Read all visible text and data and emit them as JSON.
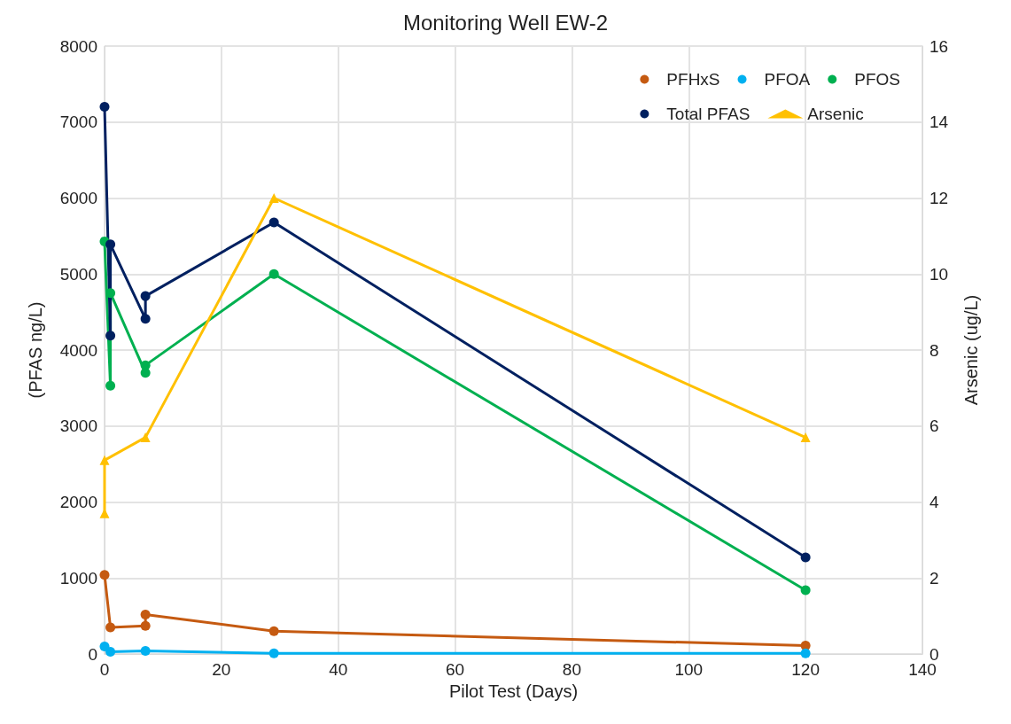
{
  "chart_data": {
    "type": "line",
    "title": "Monitoring Well EW-2",
    "xlabel": "Pilot Test (Days)",
    "ylabel": "(PFAS ng/L)",
    "y2label": "Arsenic (ug/L)",
    "series": [
      {
        "name": "PFHxS",
        "color": "#c55a11",
        "marker": "circle",
        "x": [
          0,
          1,
          7,
          7,
          29,
          120
        ],
        "values": [
          1040,
          350,
          370,
          520,
          300,
          110
        ]
      },
      {
        "name": "PFOA",
        "color": "#00b0f0",
        "marker": "circle",
        "x": [
          0,
          1,
          7,
          29,
          120
        ],
        "values": [
          100,
          30,
          40,
          10,
          10
        ]
      },
      {
        "name": "PFOS",
        "color": "#00b050",
        "marker": "circle",
        "x": [
          0,
          1,
          1,
          7,
          7,
          29,
          120
        ],
        "values": [
          5430,
          3530,
          4750,
          3700,
          3800,
          5000,
          840
        ]
      },
      {
        "name": "Total PFAS",
        "color": "#002060",
        "marker": "circle",
        "x": [
          0,
          1,
          1,
          7,
          7,
          29,
          120
        ],
        "values": [
          7200,
          4190,
          5390,
          4410,
          4710,
          5680,
          1270
        ]
      },
      {
        "name": "Arsenic",
        "color": "#ffc000",
        "marker": "triangle",
        "axis": "y2",
        "x": [
          0,
          0,
          7,
          29,
          120
        ],
        "values": [
          3.7,
          5.1,
          5.7,
          12,
          5.7
        ]
      }
    ],
    "xlim": [
      0,
      140
    ],
    "xticks": [
      0,
      20,
      40,
      60,
      80,
      100,
      120,
      140
    ],
    "ylim": [
      0,
      8000
    ],
    "yticks": [
      0,
      1000,
      2000,
      3000,
      4000,
      5000,
      6000,
      7000,
      8000
    ],
    "y2lim": [
      0,
      16
    ],
    "y2ticks": [
      0,
      2,
      4,
      6,
      8,
      10,
      12,
      14,
      16
    ],
    "grid": true,
    "legend": "top right"
  }
}
